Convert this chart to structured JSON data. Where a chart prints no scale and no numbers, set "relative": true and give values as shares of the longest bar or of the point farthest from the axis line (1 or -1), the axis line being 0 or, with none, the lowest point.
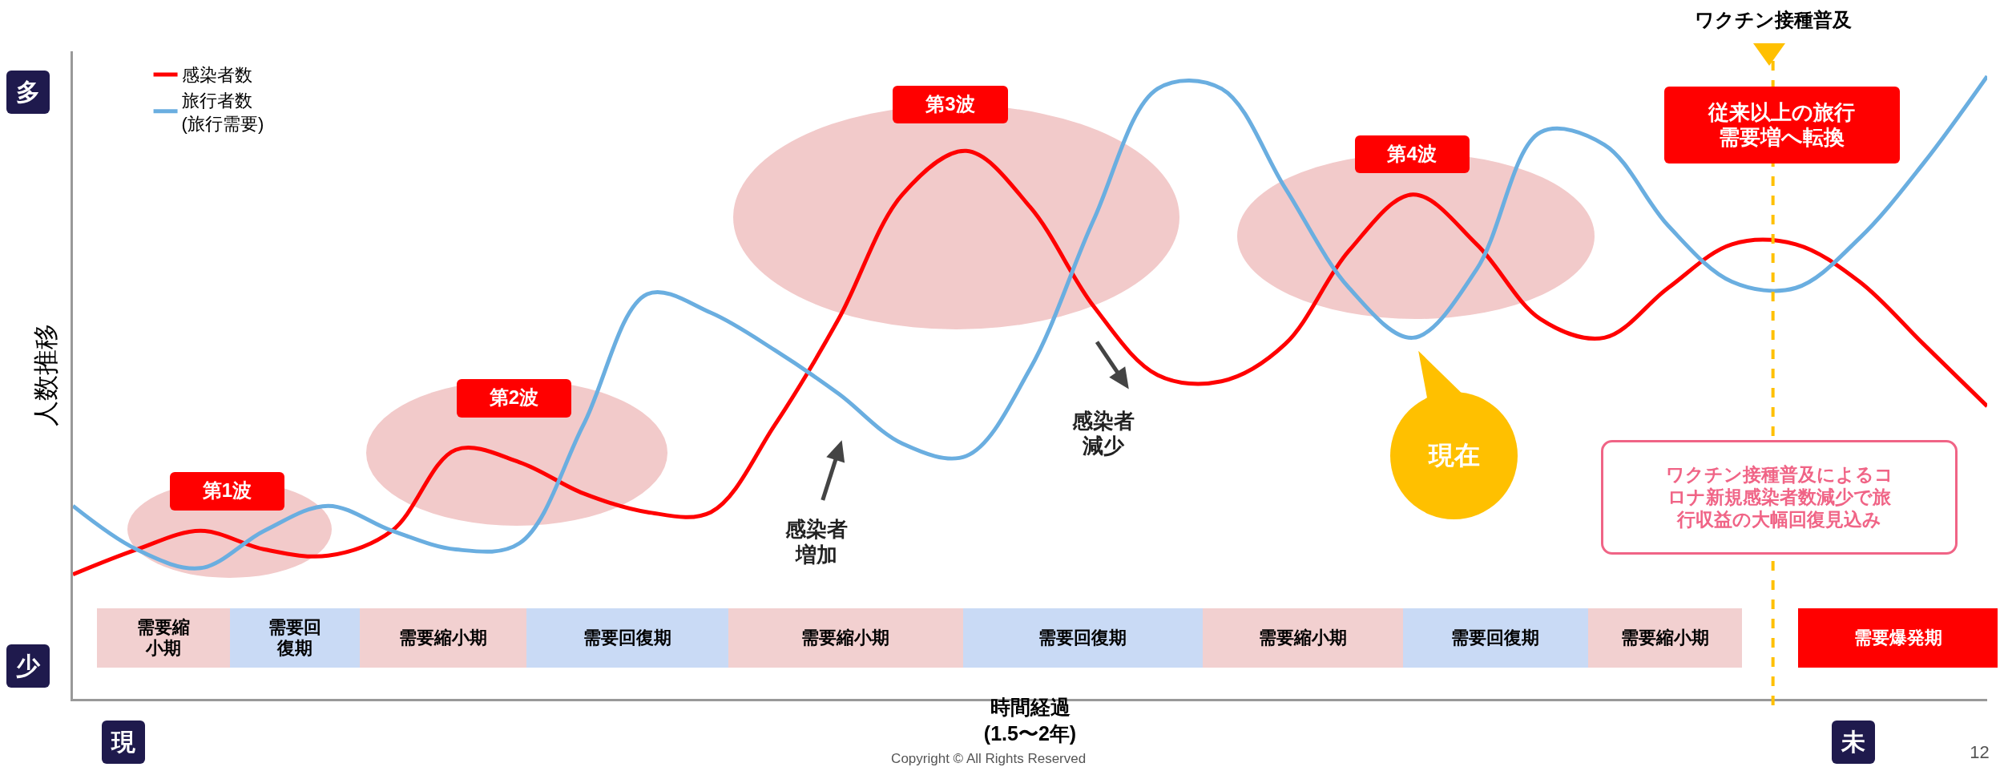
{
  "chart_data": {
    "type": "line",
    "relative": true,
    "ylabel": "人数推移",
    "xlabel": "時間経過\n(1.5〜2年)",
    "legend": "top left",
    "tick_labels": false,
    "grid": false,
    "line_style": "solid",
    "categories": [
      null,
      null,
      null,
      null,
      null,
      null,
      null,
      null,
      null,
      null,
      null,
      null,
      null,
      null,
      null,
      null,
      null,
      null,
      null,
      null,
      null,
      null,
      null,
      null,
      null,
      null,
      null,
      null,
      null,
      null,
      null
    ],
    "series": [
      {
        "name": "感染者数",
        "color": "#ff0000",
        "values": [
          0.2,
          0.24,
          0.27,
          0.24,
          0.23,
          0.27,
          0.4,
          0.38,
          0.33,
          0.3,
          0.3,
          0.44,
          0.61,
          0.81,
          0.88,
          0.79,
          0.63,
          0.52,
          0.51,
          0.57,
          0.72,
          0.81,
          0.73,
          0.61,
          0.58,
          0.66,
          0.73,
          0.73,
          0.67,
          0.57,
          0.47
        ]
      },
      {
        "name": "旅行者数\n(旅行需要)",
        "color": "#6aaee0",
        "values": [
          0.31,
          0.24,
          0.21,
          0.27,
          0.31,
          0.27,
          0.24,
          0.25,
          0.44,
          0.65,
          0.62,
          0.56,
          0.49,
          0.41,
          0.39,
          0.53,
          0.77,
          0.98,
          0.98,
          0.82,
          0.66,
          0.58,
          0.69,
          0.91,
          0.89,
          0.76,
          0.67,
          0.66,
          0.74,
          0.86,
          1.0
        ]
      }
    ],
    "ref_lines": [
      {
        "axis": "x",
        "label": "ワクチン接種普及",
        "color": "#ffc000",
        "line_style": "dashed"
      }
    ],
    "annotations": [
      "第1波",
      "第2波",
      "第3波",
      "第4波",
      "感染者増加",
      "感染者減少",
      "現在",
      "従来以上の旅行需要増へ転換",
      "ワクチン接種普及によるコロナ新規感染者数減少で旅行収益の大幅回復見込み",
      "需要縮小期",
      "需要回復期",
      "需要縮小期",
      "需要回復期",
      "需要縮小期",
      "需要回復期",
      "需要縮小期",
      "需要回復期",
      "需要縮小期",
      "需要爆発期",
      "多",
      "少",
      "現",
      "未",
      "Copyright © All Rights Reserved",
      "12"
    ]
  }
}
